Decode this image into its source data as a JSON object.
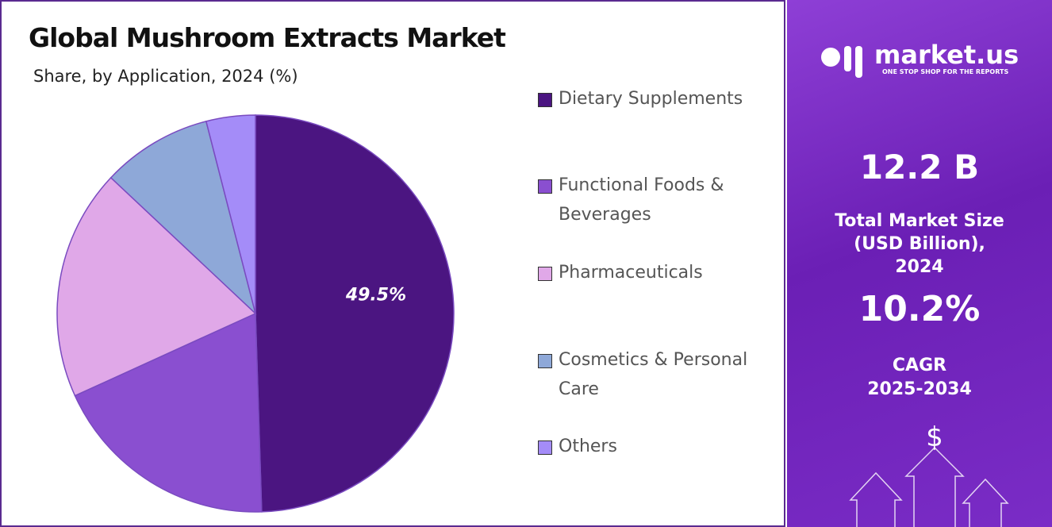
{
  "chart_data": {
    "type": "pie",
    "title": "Global Mushroom Extracts Market",
    "subtitle": "Share, by Application, 2024 (%)",
    "categories": [
      "Dietary Supplements",
      "Functional Foods & Beverages",
      "Pharmaceuticals",
      "Cosmetics & Personal Care",
      "Others"
    ],
    "values": [
      49.5,
      18.7,
      18.8,
      9.0,
      4.0
    ],
    "value_labels": [
      "49.5%",
      null,
      null,
      null,
      null
    ],
    "colors": [
      "#4b1581",
      "#8a4fd0",
      "#e0a8e8",
      "#8ea8d8",
      "#a48cf8"
    ]
  },
  "side_panel": {
    "brand": "market.us",
    "tagline": "ONE STOP SHOP FOR THE REPORTS",
    "market_size": "12.2 B",
    "market_size_label": "Total Market Size (USD Billion), 2024",
    "cagr": "10.2%",
    "cagr_label": "CAGR 2025-2034"
  }
}
